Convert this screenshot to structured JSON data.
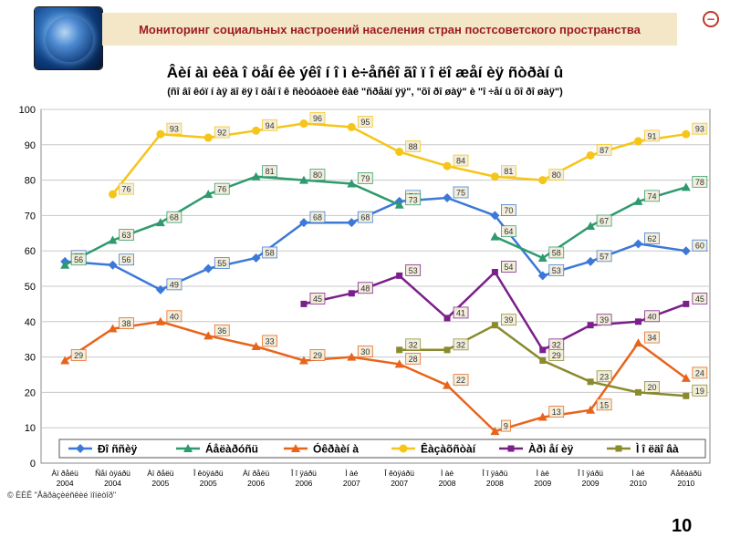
{
  "header": {
    "title": "Мониторинг социальных настроений населения стран постсоветского пространства"
  },
  "chart_title": "Âèí àì èêà î öåí êè ýêî í î ì è÷åñêî ãî ï î ëî æåí èÿ ñòðàí û",
  "chart_subtitle": "(ñî âî êóï í àÿ äî ëÿ î öåí î ê ñèòóàöèè êàê \"ñðåäí ÿÿ\", \"õî ðî øàÿ\" è \"î ÷åí ü õî ðî øàÿ\")",
  "source_note": "© ÈÈÊ \"Åâðàçèéñêèé ìîíèòîð\"",
  "page_number": "10",
  "colors": {
    "background": "#ffffff",
    "plot_bg": "#ffffff",
    "grid": "#c8c8c8",
    "header_bg": "#f3e7c7",
    "header_text": "#9e1b20"
  },
  "chart_data": {
    "type": "line",
    "ylim": [
      0,
      100
    ],
    "yticks": [
      0,
      10,
      20,
      30,
      40,
      50,
      60,
      70,
      80,
      90,
      100
    ],
    "grid": true,
    "legend_position": "bottom",
    "categories": [
      "Àï ðåëü 2004",
      "Ñåí òÿáðü 2004",
      "Àï ðåëü 2005",
      "Î êòÿáðü 2005",
      "Àï ðåëü 2006",
      "Î î ÿáðü 2006",
      "Ì àé 2007",
      "Î êòÿáðü 2007",
      "Ì àé 2008",
      "Î î ÿáðü 2008",
      "Ì àé 2009",
      "Î î ÿáðü 2009",
      "Ì àé 2010",
      "Äåêàáðü 2010"
    ],
    "series": [
      {
        "name": "Ðî ññèÿ",
        "color": "#3c78d8",
        "marker": "diamond",
        "values": [
          57,
          56,
          49,
          55,
          58,
          68,
          68,
          74,
          75,
          70,
          53,
          57,
          62,
          60
        ],
        "labels": [
          "57",
          "56",
          "49",
          "55",
          "58",
          "68",
          "68",
          "74",
          "75",
          "70",
          "53",
          "57",
          "62",
          "60"
        ]
      },
      {
        "name": "Áåëàðóñü",
        "color": "#2e9a6e",
        "marker": "triangle",
        "values": [
          56,
          63,
          68,
          76,
          81,
          80,
          79,
          73,
          null,
          64,
          58,
          67,
          74,
          78
        ],
        "labels": [
          "56",
          "63",
          "68",
          "76",
          "81",
          "80",
          "79",
          "73",
          "",
          "64",
          "58",
          "67",
          "74",
          "78"
        ]
      },
      {
        "name": "Óêðàèí à",
        "color": "#e8641b",
        "marker": "triangle",
        "values": [
          29,
          38,
          40,
          36,
          33,
          29,
          30,
          28,
          22,
          9,
          13,
          15,
          34,
          24
        ],
        "labels": [
          "29",
          "38",
          "40",
          "36",
          "33",
          "29",
          "30",
          "28",
          "22",
          "9",
          "13",
          "15",
          "34",
          "24"
        ]
      },
      {
        "name": "Êàçàõñòàí",
        "color": "#f5c518",
        "marker": "circle",
        "values": [
          null,
          76,
          93,
          92,
          94,
          96,
          95,
          88,
          84,
          81,
          80,
          87,
          91,
          93
        ],
        "labels": [
          "",
          "76",
          "93",
          "92",
          "94",
          "96",
          "95",
          "88",
          "84",
          "81",
          "80",
          "87",
          "91",
          "93"
        ]
      },
      {
        "name": "Àðì åí èÿ",
        "color": "#7b1f8a",
        "marker": "square",
        "values": [
          null,
          null,
          null,
          null,
          null,
          45,
          48,
          53,
          41,
          54,
          32,
          39,
          40,
          45
        ],
        "labels": [
          "",
          "",
          "",
          "",
          "",
          "45",
          "48",
          "53",
          "41",
          "54",
          "32",
          "39",
          "40",
          "45"
        ]
      },
      {
        "name": "Ì î ëäî âà",
        "color": "#8a8a2e",
        "marker": "square",
        "values": [
          null,
          null,
          null,
          null,
          null,
          null,
          null,
          32,
          32,
          39,
          29,
          23,
          20,
          19
        ],
        "labels": [
          "",
          "",
          "",
          "",
          "",
          "",
          "",
          "32",
          "32",
          "39",
          "29",
          "23",
          "20",
          "19"
        ]
      }
    ]
  }
}
